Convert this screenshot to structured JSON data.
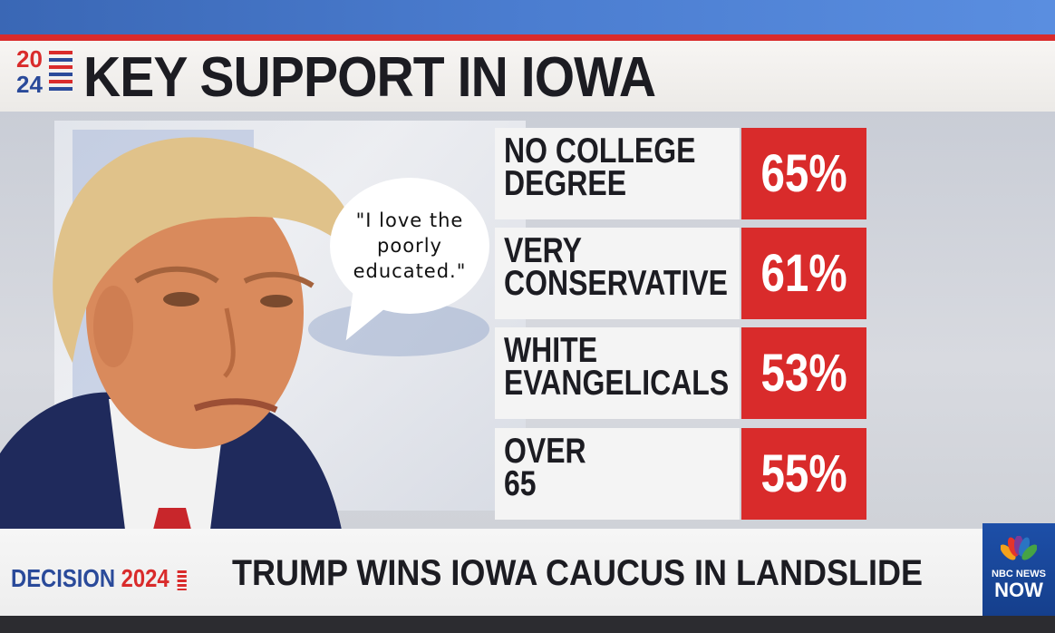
{
  "header": {
    "logo_year_top": "20",
    "logo_year_bottom": "24",
    "title": "KEY SUPPORT IN IOWA"
  },
  "speech_bubble": {
    "text": "\"I love the poorly educated.\""
  },
  "groups": [
    {
      "line1": "NO COLLEGE",
      "line2": "DEGREE",
      "percent": "65%"
    },
    {
      "line1": "VERY",
      "line2": "CONSERVATIVE",
      "percent": "61%"
    },
    {
      "line1": "WHITE",
      "line2": "EVANGELICALS",
      "percent": "53%"
    },
    {
      "line1": "OVER",
      "line2": "65",
      "percent": "55%"
    }
  ],
  "ticker": {
    "decision_label": "DECISION",
    "decision_year": "2024",
    "headline": "TRUMP WINS IOWA CAUCUS IN LANDSLIDE"
  },
  "network": {
    "name": "NBC NEWS",
    "product": "NOW"
  },
  "colors": {
    "accent_red": "#d92b2b",
    "accent_blue": "#2a4a9a",
    "network_blue": "#1d4fa8"
  }
}
